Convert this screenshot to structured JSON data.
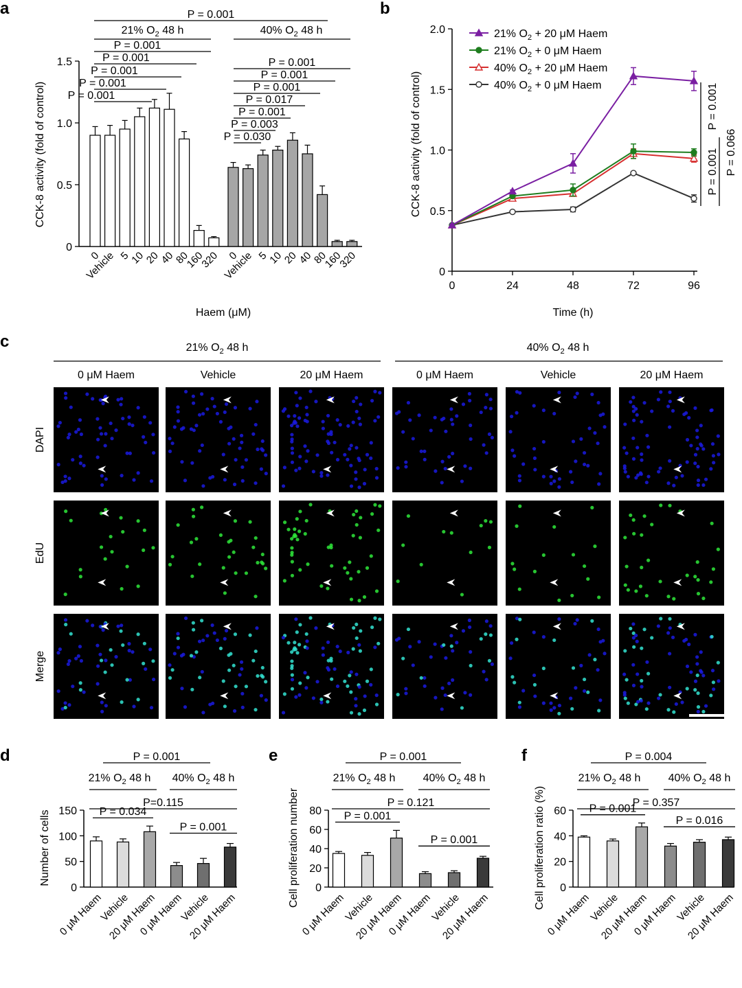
{
  "panel_letters": [
    "a",
    "b",
    "c",
    "d",
    "e",
    "f"
  ],
  "colors": {
    "white_bar": "#ffffff",
    "grey_bar": "#a6a6a6",
    "line_purple": "#7a1fa2",
    "line_green": "#1e7d1e",
    "line_red": "#d62f2f",
    "line_black": "#333333",
    "dapi": "#1a1adf",
    "edu": "#2ee63a",
    "merge": "#33e3d1"
  },
  "chart_data": [
    {
      "panel": "a",
      "type": "bar",
      "ylabel": "CCK-8 activity (fold of control)",
      "xlabel": "Haem (μM)",
      "ylim": [
        0,
        1.5
      ],
      "yticks": [
        "0",
        "0.5",
        "1.0",
        "1.5"
      ],
      "categories": [
        "0",
        "Vehicle",
        "5",
        "10",
        "20",
        "40",
        "80",
        "160",
        "320"
      ],
      "series": [
        {
          "name": "21% O2 48 h",
          "values": [
            0.9,
            0.9,
            0.95,
            1.05,
            1.12,
            1.11,
            0.87,
            0.13,
            0.07
          ],
          "errors": [
            0.07,
            0.08,
            0.07,
            0.07,
            0.07,
            0.13,
            0.06,
            0.04,
            0.01
          ]
        },
        {
          "name": "40% O2 48 h",
          "values": [
            0.64,
            0.63,
            0.74,
            0.78,
            0.86,
            0.75,
            0.42,
            0.04,
            0.04
          ],
          "errors": [
            0.04,
            0.03,
            0.04,
            0.03,
            0.06,
            0.07,
            0.07,
            0.01,
            0.01
          ]
        }
      ],
      "group_labels": [
        {
          "pre": "21% O",
          "sub": "2",
          "post": " 48 h"
        },
        {
          "pre": "40% O",
          "sub": "2",
          "post": " 48 h"
        }
      ],
      "pvals_top": [
        "P = 0.001"
      ],
      "pvals_left": [
        "P = 0.001",
        "P = 0.001",
        "P = 0.001",
        "P = 0.001",
        "P = 0.001"
      ],
      "pvals_right": [
        "P = 0.001",
        "P = 0.001",
        "P = 0.001",
        "P = 0.017",
        "P = 0.001",
        "P = 0.003",
        "P = 0.030"
      ]
    },
    {
      "panel": "b",
      "type": "line",
      "xlabel": "Time (h)",
      "ylabel": "CCK-8 activity (fold of control)",
      "ylim": [
        0,
        2.0
      ],
      "yticks": [
        "0",
        "0.5",
        "1.0",
        "1.5",
        "2.0"
      ],
      "x": [
        0,
        24,
        48,
        72,
        96
      ],
      "xticks": [
        "0",
        "24",
        "48",
        "72",
        "96"
      ],
      "series": [
        {
          "name": "21% O2 + 20 μM Haem",
          "legend": {
            "pre": "21% O",
            "sub": "2",
            "post": " + 20 μM Haem"
          },
          "values": [
            0.38,
            0.66,
            0.89,
            1.61,
            1.57
          ],
          "errors": [
            0.01,
            0.01,
            0.08,
            0.07,
            0.08
          ],
          "color": "#7a1fa2",
          "marker": "triangle-filled"
        },
        {
          "name": "21% O2 + 0 μM Haem",
          "legend": {
            "pre": "21% O",
            "sub": "2",
            "post": " + 0 μM Haem"
          },
          "values": [
            0.38,
            0.62,
            0.67,
            0.99,
            0.98
          ],
          "errors": [
            0.01,
            0.01,
            0.05,
            0.06,
            0.03
          ],
          "color": "#1e7d1e",
          "marker": "circle-filled"
        },
        {
          "name": "40% O2 + 20 μM Haem",
          "legend": {
            "pre": "40% O",
            "sub": "2",
            "post": " + 20 μM Haem"
          },
          "values": [
            0.38,
            0.6,
            0.64,
            0.97,
            0.93
          ],
          "errors": [
            0.01,
            0.01,
            0.02,
            0.04,
            0.03
          ],
          "color": "#d62f2f",
          "marker": "triangle-open"
        },
        {
          "name": "40% O2 + 0 μM Haem",
          "legend": {
            "pre": "40% O",
            "sub": "2",
            "post": " + 0 μM Haem"
          },
          "values": [
            0.38,
            0.49,
            0.51,
            0.81,
            0.6
          ],
          "errors": [
            0.01,
            0.01,
            0.02,
            0.01,
            0.03
          ],
          "color": "#333333",
          "marker": "circle-open"
        }
      ],
      "pvals": [
        "P = 0.001",
        "P = 0.001",
        "P = 0.066"
      ]
    },
    {
      "panel": "d",
      "type": "bar",
      "ylabel": "Number of cells",
      "ylim": [
        0,
        150
      ],
      "yticks": [
        "0",
        "50",
        "100",
        "150"
      ],
      "categories": [
        "0 μM Haem",
        "Vehicle",
        "20 μM Haem",
        "0 μM Haem",
        "Vehicle",
        "20 μM Haem"
      ],
      "values": [
        90,
        88,
        108,
        42,
        46,
        78
      ],
      "errors": [
        8,
        6,
        11,
        6,
        10,
        7
      ],
      "pvals": [
        "P = 0.001",
        "P=0.115",
        "P = 0.034",
        "P = 0.001"
      ]
    },
    {
      "panel": "e",
      "type": "bar",
      "ylabel": "Cell proliferation number",
      "ylim": [
        0,
        80
      ],
      "yticks": [
        "0",
        "20",
        "40",
        "60",
        "80"
      ],
      "categories": [
        "0 μM Haem",
        "Vehicle",
        "20 μM Haem",
        "0 μM Haem",
        "Vehicle",
        "20 μM Haem"
      ],
      "values": [
        35,
        33,
        51,
        14,
        15,
        30
      ],
      "errors": [
        2,
        3,
        8,
        2,
        2,
        2
      ],
      "pvals": [
        "P = 0.001",
        "P = 0.121",
        "P = 0.001",
        "P = 0.001"
      ]
    },
    {
      "panel": "f",
      "type": "bar",
      "ylabel": "Cell proliferation ratio (%)",
      "ylim": [
        0,
        60
      ],
      "yticks": [
        "0",
        "20",
        "40",
        "60"
      ],
      "categories": [
        "0 μM Haem",
        "Vehicle",
        "20 μM Haem",
        "0 μM Haem",
        "Vehicle",
        "20 μM Haem"
      ],
      "values": [
        39,
        36,
        47,
        32,
        35,
        37
      ],
      "errors": [
        1,
        1.5,
        3,
        2,
        2,
        2
      ],
      "pvals": [
        "P = 0.004",
        "P = 0.357",
        "P = 0.001",
        "P = 0.016"
      ]
    }
  ],
  "panel_c": {
    "group_labels": [
      {
        "pre": "21% O",
        "sub": "2",
        "post": " 48 h"
      },
      {
        "pre": "40% O",
        "sub": "2",
        "post": " 48 h"
      }
    ],
    "column_labels": [
      "0 μM Haem",
      "Vehicle",
      "20 μM Haem",
      "0 μM Haem",
      "Vehicle",
      "20 μM Haem"
    ],
    "row_labels": [
      "DAPI",
      "EdU",
      "Merge"
    ]
  },
  "group_labels_def": [
    {
      "pre": "21% O",
      "sub": "2",
      "post": " 48 h"
    },
    {
      "pre": "40% O",
      "sub": "2",
      "post": " 48 h"
    }
  ]
}
